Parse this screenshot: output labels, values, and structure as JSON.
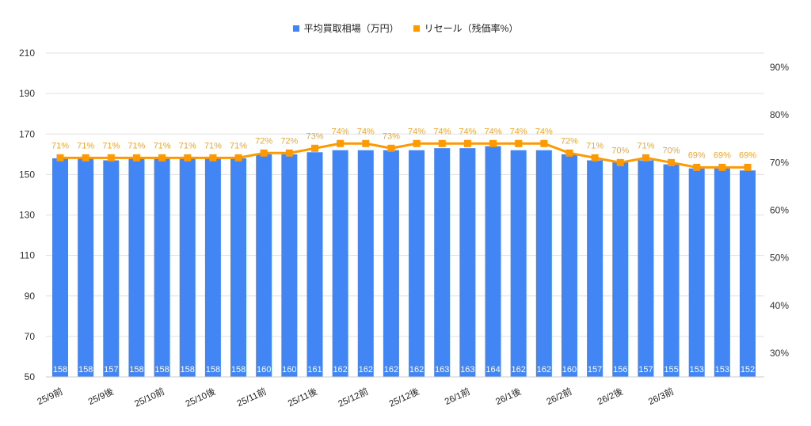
{
  "chart_data": {
    "type": "bar+line",
    "title": "",
    "legend": [
      {
        "name": "平均買取相場（万円）",
        "color": "#4285f4",
        "kind": "bar"
      },
      {
        "name": "リセール（残価率%）",
        "color": "#ff9900",
        "kind": "line"
      }
    ],
    "legend_position": "top",
    "categories": [
      "25/9前",
      "",
      "25/9後",
      "",
      "25/10前",
      "",
      "25/10後",
      "",
      "25/11前",
      "",
      "25/11後",
      "",
      "25/12前",
      "",
      "25/12後",
      "",
      "26/1前",
      "",
      "26/1後",
      "",
      "26/2前",
      "",
      "26/2後",
      "",
      "26/3前",
      "",
      "",
      ""
    ],
    "x_tick_labels": [
      "25/9前",
      "25/9後",
      "25/10前",
      "25/10後",
      "25/11前",
      "25/11後",
      "25/12前",
      "25/12後",
      "26/1前",
      "26/1後",
      "26/2前",
      "26/2後",
      "26/3前"
    ],
    "series": [
      {
        "name": "平均買取相場（万円）",
        "axis": "left",
        "type": "bar",
        "values": [
          158,
          158,
          157,
          158,
          158,
          158,
          158,
          158,
          160,
          160,
          161,
          162,
          162,
          162,
          162,
          163,
          163,
          164,
          162,
          162,
          160,
          157,
          156,
          157,
          155,
          153,
          153,
          152
        ]
      },
      {
        "name": "リセール（残価率%）",
        "axis": "right",
        "type": "line",
        "values": [
          71,
          71,
          71,
          71,
          71,
          71,
          71,
          71,
          72,
          72,
          73,
          74,
          74,
          73,
          74,
          74,
          74,
          74,
          74,
          74,
          72,
          71,
          70,
          71,
          70,
          69,
          69,
          69
        ]
      }
    ],
    "left_axis": {
      "ticks": [
        50,
        70,
        90,
        110,
        130,
        150,
        170,
        190,
        210
      ],
      "ylim": [
        50,
        210
      ]
    },
    "right_axis": {
      "ticks": [
        "30%",
        "40%",
        "50%",
        "60%",
        "70%",
        "80%",
        "90%"
      ],
      "ylim": [
        25,
        92
      ]
    },
    "grid": true
  },
  "legend": {
    "bar_label": "平均買取相場（万円）",
    "line_label": "リセール（残価率%）"
  },
  "colors": {
    "bar": "#4285f4",
    "line": "#ff9900",
    "line_label": "#f4a62a",
    "grid": "#e0e0e0"
  }
}
